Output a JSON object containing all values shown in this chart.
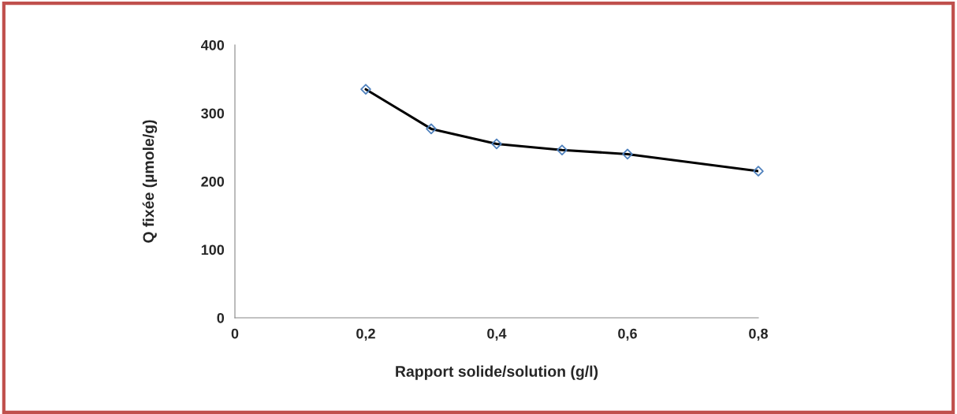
{
  "chart_data": {
    "type": "line",
    "xlabel": "Rapport solide/solution (g/l)",
    "ylabel": "Q fixée (µmole/g)",
    "x": [
      0.2,
      0.3,
      0.4,
      0.5,
      0.6,
      0.8
    ],
    "series": [
      {
        "color": "#000000",
        "colors": [
          "#4f81bd",
          "#4f81bd",
          "#4f81bd",
          "#4f81bd",
          "#4f81bd",
          "#4f81bd"
        ],
        "values": [
          335,
          277,
          255,
          246,
          240,
          215
        ]
      }
    ],
    "marker": "diamond",
    "xlim": [
      0,
      0.8
    ],
    "xticks": [
      {
        "value": 0,
        "label": "0"
      },
      {
        "value": 0.2,
        "label": "0,2"
      },
      {
        "value": 0.4,
        "label": "0,4"
      },
      {
        "value": 0.6,
        "label": "0,6"
      },
      {
        "value": 0.8,
        "label": "0,8"
      }
    ],
    "ylim": [
      0,
      400
    ],
    "yticks": [
      0,
      100,
      200,
      300,
      400
    ],
    "grid": false,
    "legend": false
  }
}
